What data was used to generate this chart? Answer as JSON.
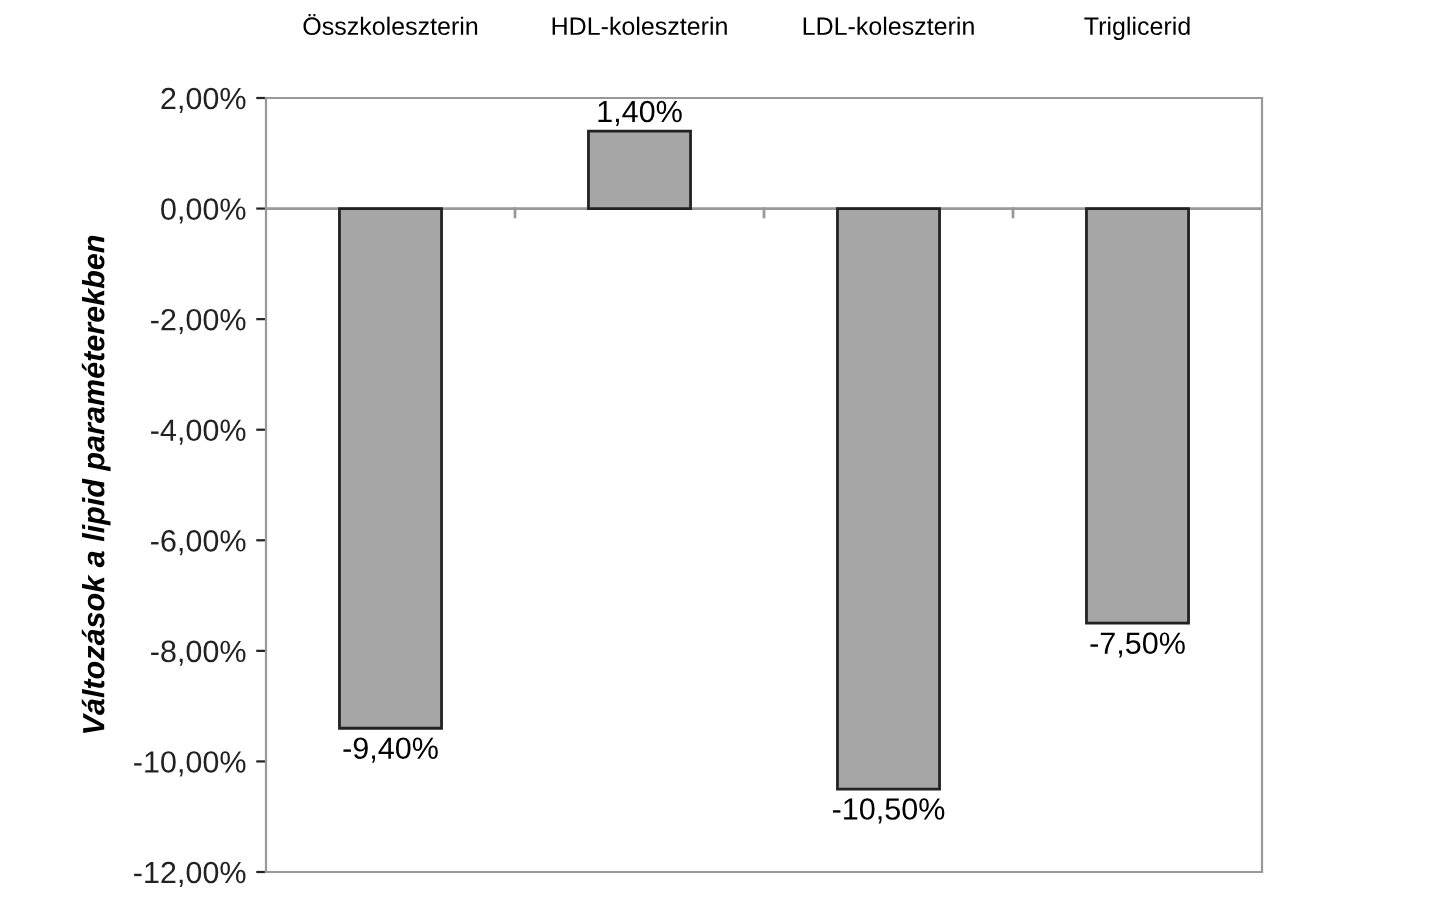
{
  "chart_data": {
    "type": "bar",
    "ylabel": "Változások a lipid paraméterekben",
    "categories": [
      "Összkoleszterin",
      "HDL-koleszterin",
      "LDL-koleszterin",
      "Triglicerid"
    ],
    "values": [
      -9.4,
      1.4,
      -10.5,
      -7.5
    ],
    "value_labels": [
      "-9,40%",
      "1,40%",
      "-10,50%",
      "-7,50%"
    ],
    "color": "#a6a6a6",
    "ylim": [
      -12,
      2
    ],
    "yticks": [
      {
        "value": 2,
        "label": "2,00%"
      },
      {
        "value": 0,
        "label": "0,00%"
      },
      {
        "value": -2,
        "label": "-2,00%"
      },
      {
        "value": -4,
        "label": "-4,00%"
      },
      {
        "value": -6,
        "label": "-6,00%"
      },
      {
        "value": -8,
        "label": "-8,00%"
      },
      {
        "value": -10,
        "label": "-10,00%"
      },
      {
        "value": -12,
        "label": "-12,00%"
      }
    ],
    "ref_lines": [
      {
        "axis": "y",
        "value": 0,
        "color": "#999999"
      }
    ],
    "grid": false,
    "legend": false
  }
}
